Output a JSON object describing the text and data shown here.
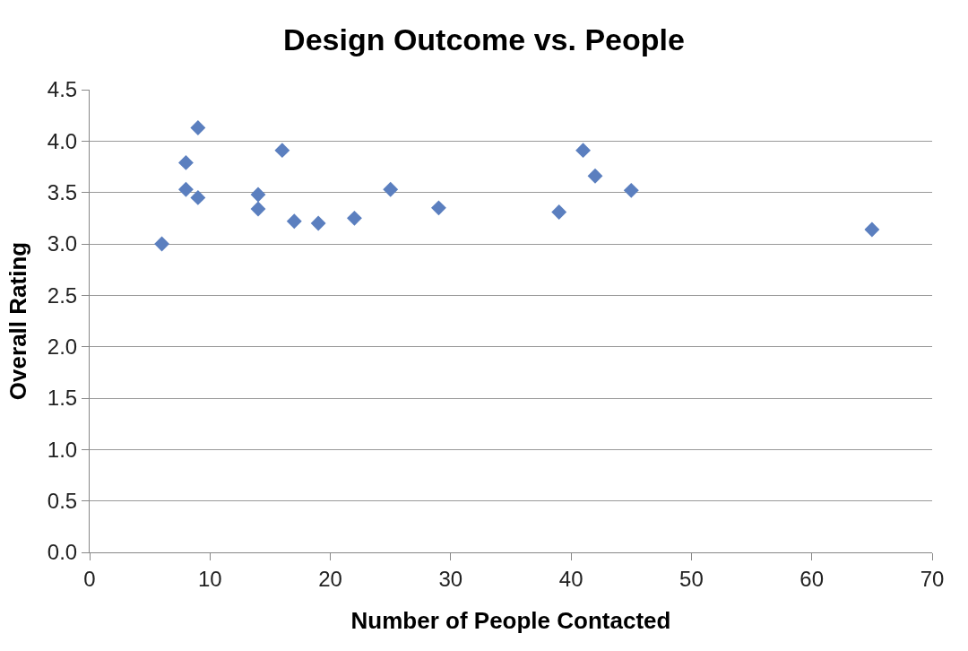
{
  "chart_data": {
    "type": "scatter",
    "title": "Design Outcome vs. People",
    "xlabel": "Number of People Contacted",
    "ylabel": "Overall Rating",
    "series": [
      {
        "color": "#5b7fbf",
        "x": [
          6,
          8,
          8,
          9,
          9,
          14,
          14,
          16,
          17,
          19,
          22,
          25,
          29,
          39,
          41,
          42,
          45,
          65
        ],
        "values": [
          3.0,
          3.79,
          3.53,
          4.13,
          3.45,
          3.48,
          3.34,
          3.91,
          3.22,
          3.2,
          3.25,
          3.53,
          3.35,
          3.31,
          3.91,
          3.66,
          3.52,
          3.14
        ]
      }
    ],
    "xlim": [
      0,
      70
    ],
    "xticks": [
      0,
      10,
      20,
      30,
      40,
      50,
      60,
      70
    ],
    "ylim": [
      0,
      4.5
    ],
    "yticks": [
      {
        "value": 0,
        "label": "0.0"
      },
      {
        "value": 0.5,
        "label": "0.5"
      },
      {
        "value": 1,
        "label": "1.0"
      },
      {
        "value": 1.5,
        "label": "1.5"
      },
      {
        "value": 2,
        "label": "2.0"
      },
      {
        "value": 2.5,
        "label": "2.5"
      },
      {
        "value": 3,
        "label": "3.0"
      },
      {
        "value": 3.5,
        "label": "3.5"
      },
      {
        "value": 4,
        "label": "4.0"
      },
      {
        "value": 4.5,
        "label": "4.5"
      }
    ],
    "grid": "y",
    "marker": "diamond"
  }
}
